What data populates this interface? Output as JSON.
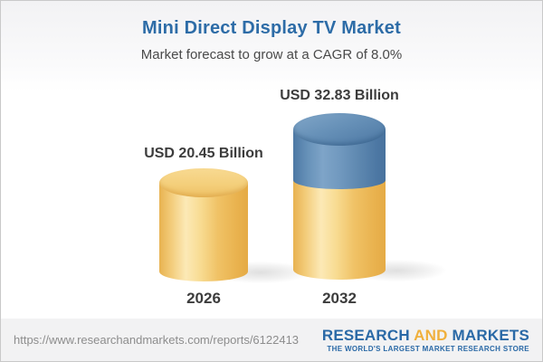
{
  "header": {
    "title": "Mini Direct Display TV Market",
    "subtitle": "Market forecast to grow at a CAGR of 8.0%"
  },
  "chart_data": {
    "type": "bar",
    "title": "Mini Direct Display TV Market",
    "subtitle": "Market forecast to grow at a CAGR of 8.0%",
    "unit": "USD Billion",
    "cagr_percent": 8.0,
    "categories": [
      "2026",
      "2032"
    ],
    "values": [
      20.45,
      32.83
    ],
    "value_labels": [
      "USD 20.45 Billion",
      "USD 32.83 Billion"
    ],
    "legend": [],
    "layout_hints": {
      "style": "3d-cylinder pictorial bars, no axes, no gridlines",
      "base_segment_color": "#F2C768",
      "growth_segment_color": "#5C87B0",
      "growth_segment_note": "2032 bar shows 2026 base in yellow plus incremental growth in blue"
    }
  },
  "footer": {
    "url": "https://www.researchandmarkets.com/reports/6122413",
    "logo": {
      "research": "RESEARCH",
      "and": "AND",
      "markets": "MARKETS",
      "tagline": "THE WORLD'S LARGEST MARKET RESEARCH STORE"
    }
  }
}
